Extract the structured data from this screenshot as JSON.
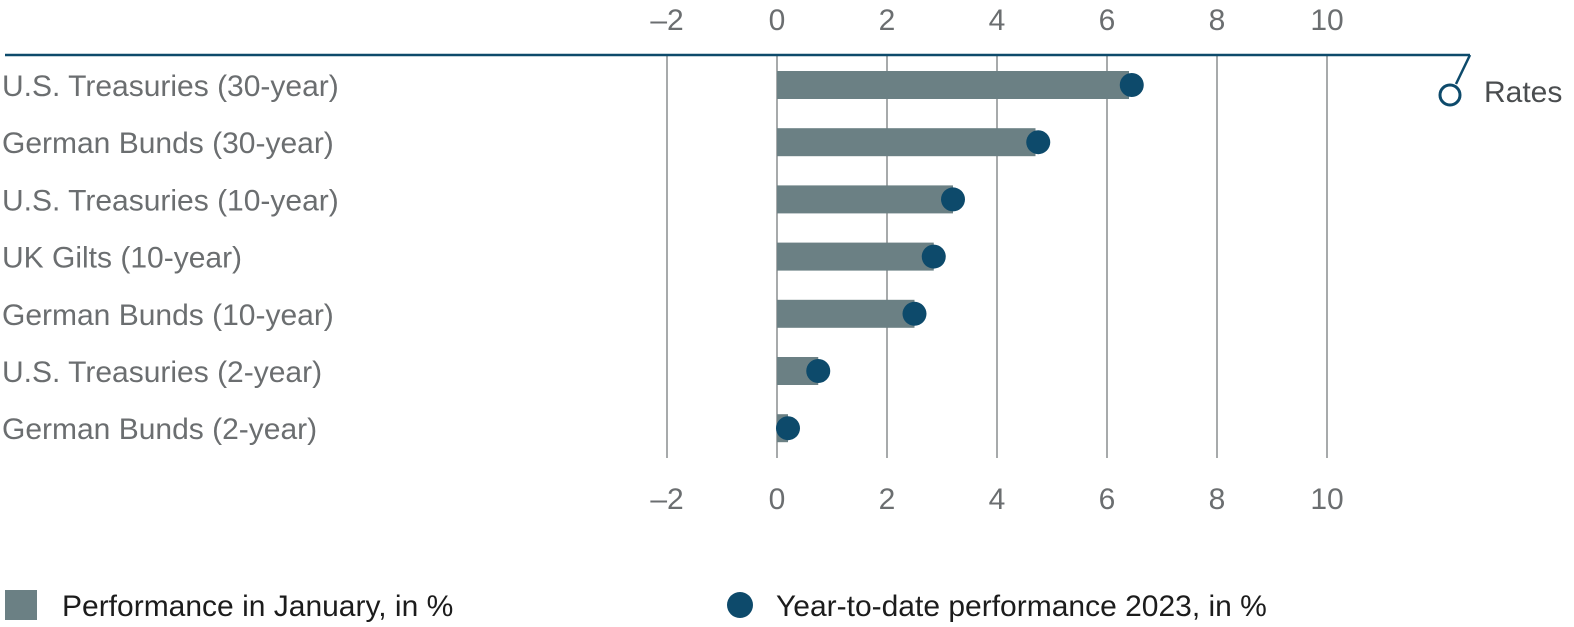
{
  "chart_data": {
    "type": "bar",
    "categories": [
      "U.S. Treasuries (30-year)",
      "German Bunds (30-year)",
      "U.S. Treasuries (10-year)",
      "UK Gilts (10-year)",
      "German Bunds (10-year)",
      "U.S. Treasuries (2-year)",
      "German Bunds (2-year)"
    ],
    "series": [
      {
        "name": "Performance in January, in %",
        "type": "bar",
        "values": [
          6.4,
          4.7,
          3.2,
          2.85,
          2.5,
          0.75,
          0.2
        ]
      },
      {
        "name": "Year-to-date performance 2023, in %",
        "type": "dot",
        "values": [
          6.45,
          4.75,
          3.2,
          2.85,
          2.5,
          0.75,
          0.2
        ]
      }
    ],
    "x_ticks": [
      "–2",
      "0",
      "2",
      "4",
      "6",
      "8",
      "10"
    ],
    "x_tick_values": [
      -2,
      0,
      2,
      4,
      6,
      8,
      10
    ],
    "xlim": [
      -2,
      10
    ],
    "grid": true,
    "legend_position": "bottom",
    "tag": "Rates",
    "colors": {
      "bar": "#6b8084",
      "dot": "#0d4a6b",
      "axis_line": "#0d4a6b",
      "grid": "#8a8d8f",
      "text": "#6b6e70"
    }
  }
}
